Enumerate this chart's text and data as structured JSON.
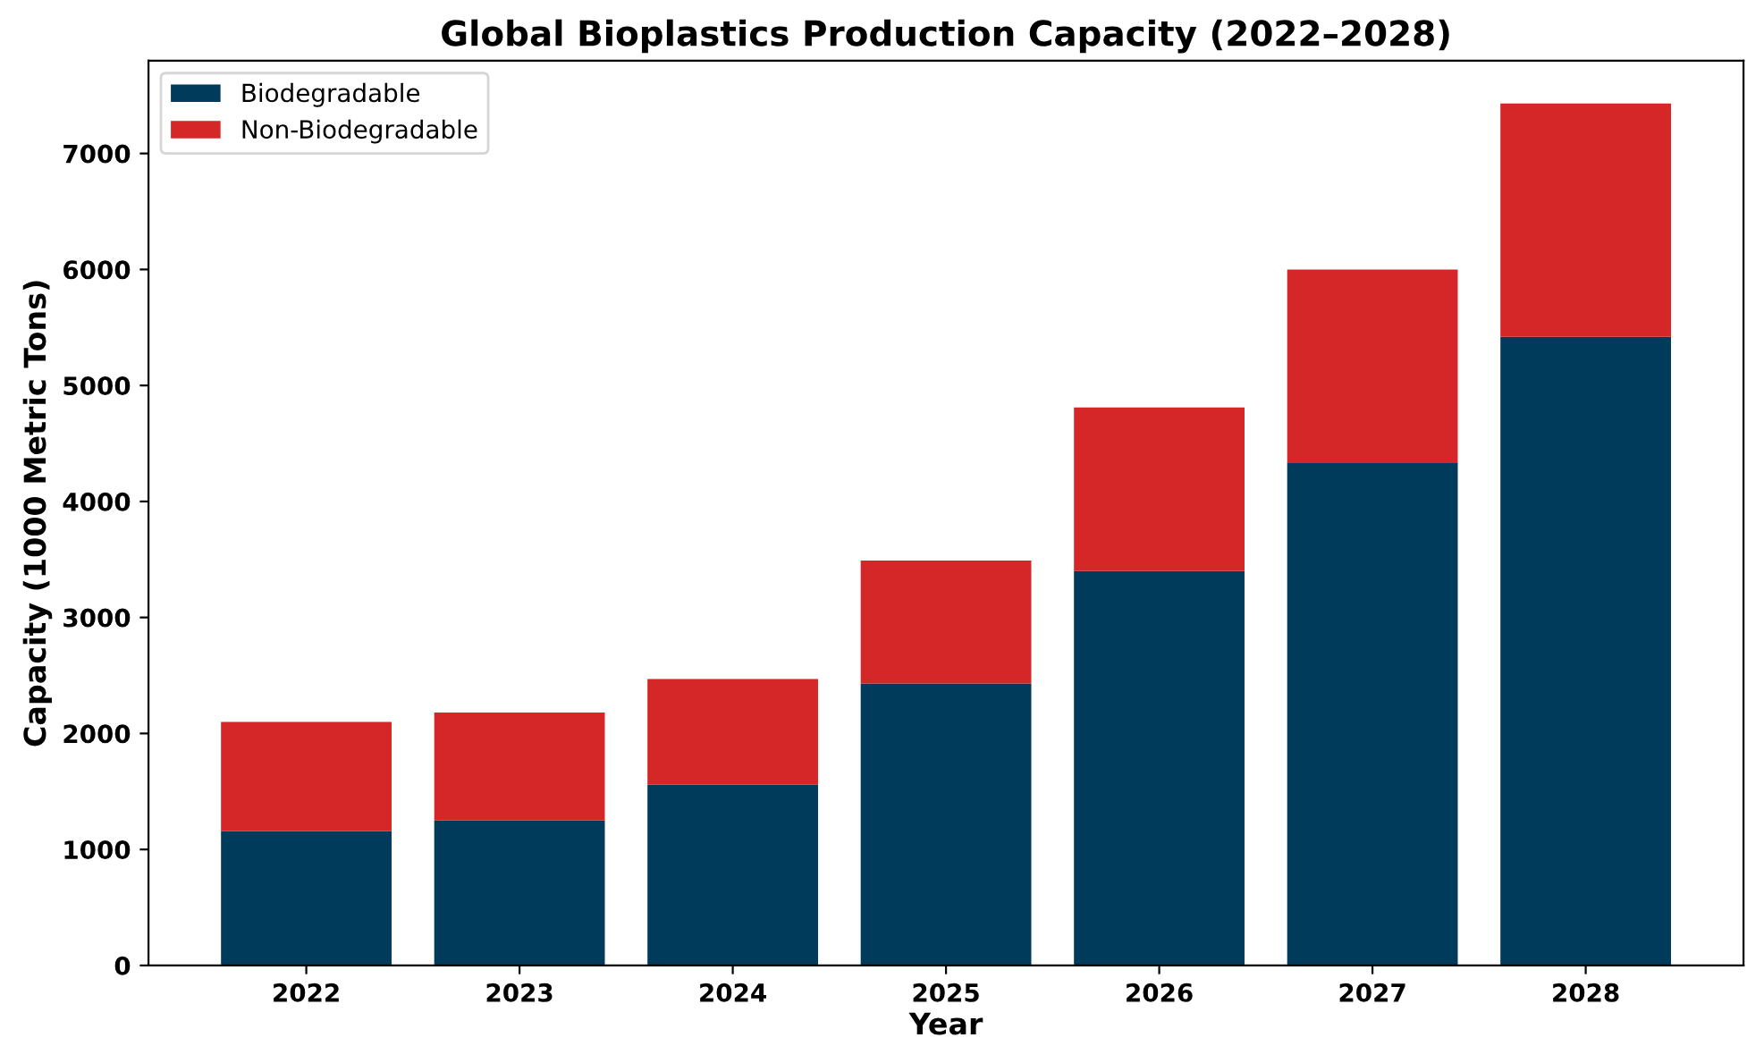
{
  "chart_data": {
    "type": "bar",
    "stacked": true,
    "title": "Global Bioplastics Production Capacity (2022–2028)",
    "xlabel": "Year",
    "ylabel": "Capacity (1000 Metric Tons)",
    "categories": [
      "2022",
      "2023",
      "2024",
      "2025",
      "2026",
      "2027",
      "2028"
    ],
    "series": [
      {
        "name": "Biodegradable",
        "color": "#003b5c",
        "values": [
          1160,
          1250,
          1560,
          2430,
          3400,
          4330,
          5420
        ]
      },
      {
        "name": "Non-Biodegradable",
        "color": "#d62728",
        "values": [
          940,
          930,
          910,
          1060,
          1410,
          1670,
          2010
        ]
      }
    ],
    "ylim": [
      0,
      7800
    ],
    "yticks": [
      0,
      1000,
      2000,
      3000,
      4000,
      5000,
      6000,
      7000
    ],
    "legend": "top left"
  }
}
